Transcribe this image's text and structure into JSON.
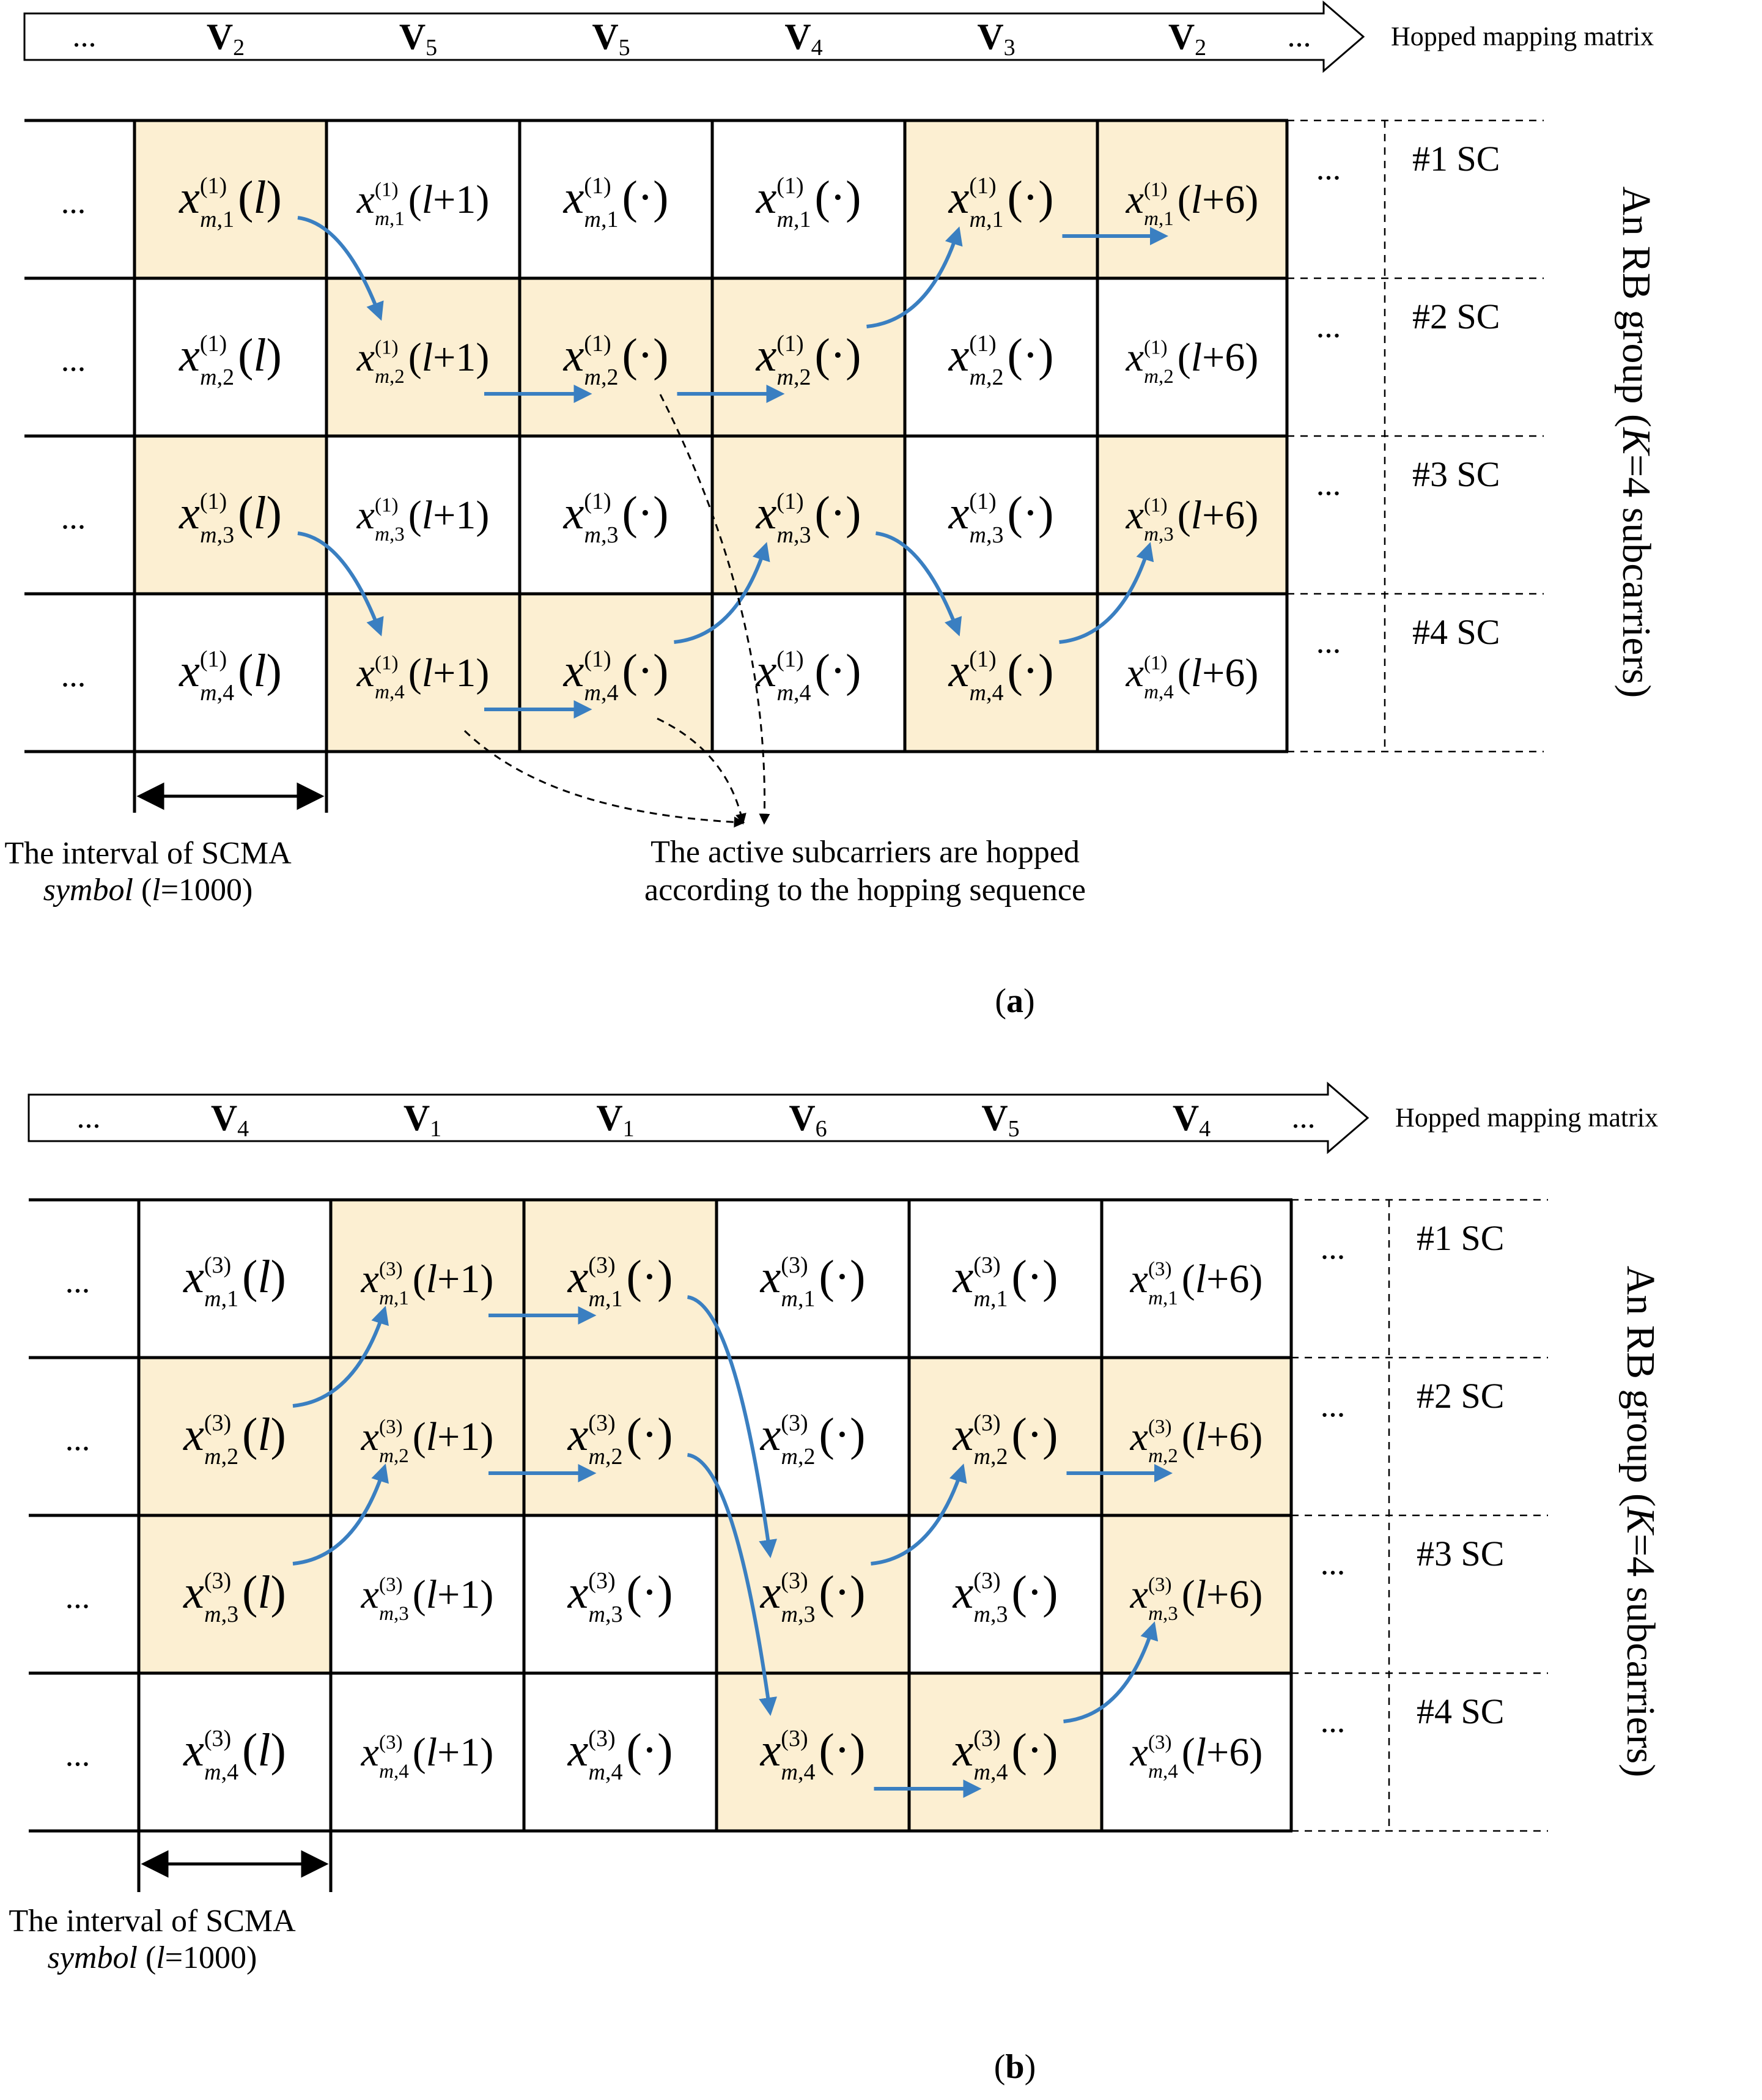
{
  "panels": [
    {
      "id": "a",
      "label": "a",
      "superscript": "1",
      "matrix_label": "Hopped mapping matrix",
      "matrix_sequence": [
        {
          "base": "V",
          "sub": "2"
        },
        {
          "base": "V",
          "sub": "5"
        },
        {
          "base": "V",
          "sub": "5"
        },
        {
          "base": "V",
          "sub": "4"
        },
        {
          "base": "V",
          "sub": "3"
        },
        {
          "base": "V",
          "sub": "2"
        }
      ],
      "column_args": [
        "l",
        "l+1",
        "·",
        "·",
        "·",
        "l+6"
      ],
      "row_labels": [
        "#1 SC",
        "#2 SC",
        "#3 SC",
        "#4 SC"
      ],
      "active": [
        [
          1,
          0,
          0,
          0,
          1,
          1
        ],
        [
          0,
          1,
          1,
          1,
          0,
          0
        ],
        [
          1,
          0,
          0,
          1,
          0,
          1
        ],
        [
          0,
          1,
          1,
          0,
          1,
          0
        ]
      ],
      "hop_path_user_a": [
        1,
        2,
        2,
        2,
        1,
        1
      ],
      "hop_path_user_b": [
        3,
        4,
        4,
        3,
        4,
        3
      ],
      "group_label": "An RB group (K=4 subcarriers)",
      "interval_label_line1": "The interval of SCMA",
      "interval_label_line2": "symbol (l=1000)",
      "hop_note_line1": "The active subcarriers are hopped",
      "hop_note_line2": "according to the hopping sequence",
      "ellipsis": "..."
    },
    {
      "id": "b",
      "label": "b",
      "superscript": "3",
      "matrix_label": "Hopped mapping matrix",
      "matrix_sequence": [
        {
          "base": "V",
          "sub": "4"
        },
        {
          "base": "V",
          "sub": "1"
        },
        {
          "base": "V",
          "sub": "1"
        },
        {
          "base": "V",
          "sub": "6"
        },
        {
          "base": "V",
          "sub": "5"
        },
        {
          "base": "V",
          "sub": "4"
        }
      ],
      "column_args": [
        "l",
        "l+1",
        "·",
        "·",
        "·",
        "l+6"
      ],
      "row_labels": [
        "#1 SC",
        "#2 SC",
        "#3 SC",
        "#4 SC"
      ],
      "active": [
        [
          0,
          1,
          1,
          0,
          0,
          0
        ],
        [
          1,
          1,
          1,
          0,
          1,
          1
        ],
        [
          1,
          0,
          0,
          1,
          0,
          1
        ],
        [
          0,
          0,
          0,
          1,
          1,
          0
        ]
      ],
      "hop_path_user_a": [
        2,
        1,
        1,
        3,
        2,
        2
      ],
      "hop_path_user_b": [
        3,
        2,
        2,
        4,
        4,
        3
      ],
      "group_label": "An RB group (K=4 subcarriers)",
      "interval_label_line1": "The interval of SCMA",
      "interval_label_line2": "symbol (l=1000)",
      "ellipsis": "..."
    }
  ],
  "colors": {
    "active_fill": "#FCEFD2",
    "grid_line": "#000000",
    "hop_arrow": "#3A7FC1",
    "text": "#000000"
  }
}
